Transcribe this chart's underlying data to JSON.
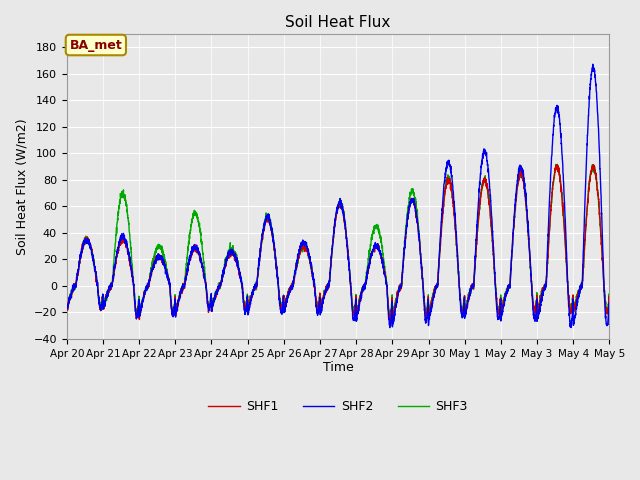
{
  "title": "Soil Heat Flux",
  "xlabel": "Time",
  "ylabel": "Soil Heat Flux (W/m2)",
  "ylim": [
    -40,
    190
  ],
  "yticks": [
    -40,
    -20,
    0,
    20,
    40,
    60,
    80,
    100,
    120,
    140,
    160,
    180
  ],
  "background_color": "#e8e8e8",
  "plot_bg_color": "#e8e8e8",
  "line_colors": {
    "SHF1": "#cc0000",
    "SHF2": "#0000ee",
    "SHF3": "#00aa00"
  },
  "line_widths": {
    "SHF1": 1.0,
    "SHF2": 1.0,
    "SHF3": 1.0
  },
  "annotation_text": "BA_met",
  "annotation_bg": "#ffffcc",
  "annotation_border": "#aa8800",
  "annotation_text_color": "#880000",
  "n_points": 3601,
  "xtick_labels": [
    "Apr 20",
    "Apr 21",
    "Apr 22",
    "Apr 23",
    "Apr 24",
    "Apr 25",
    "Apr 26",
    "Apr 27",
    "Apr 28",
    "Apr 29",
    "Apr 30",
    "May 1",
    "May 2",
    "May 3",
    "May 4",
    "May 5"
  ],
  "day_peaks_shf1": [
    35,
    35,
    22,
    28,
    25,
    50,
    30,
    62,
    30,
    65,
    80,
    80,
    85,
    90,
    90,
    5
  ],
  "day_peaks_shf2": [
    35,
    37,
    22,
    29,
    26,
    52,
    33,
    63,
    30,
    65,
    93,
    101,
    90,
    135,
    165,
    5
  ],
  "day_peaks_shf3": [
    35,
    70,
    30,
    55,
    28,
    52,
    30,
    63,
    45,
    72,
    82,
    80,
    85,
    90,
    90,
    5
  ],
  "day_troughs_shf1": [
    -17,
    -23,
    -22,
    -17,
    -17,
    -17,
    -17,
    -22,
    -25,
    -22,
    -20,
    -20,
    -20,
    -20,
    -20,
    -20
  ],
  "day_troughs_shf2": [
    -17,
    -23,
    -22,
    -17,
    -20,
    -20,
    -20,
    -26,
    -30,
    -27,
    -23,
    -26,
    -26,
    -30,
    -30,
    -35
  ],
  "day_troughs_shf3": [
    -15,
    -20,
    -20,
    -16,
    -16,
    -16,
    -16,
    -20,
    -22,
    -20,
    -18,
    -18,
    -18,
    -18,
    -18,
    -18
  ]
}
